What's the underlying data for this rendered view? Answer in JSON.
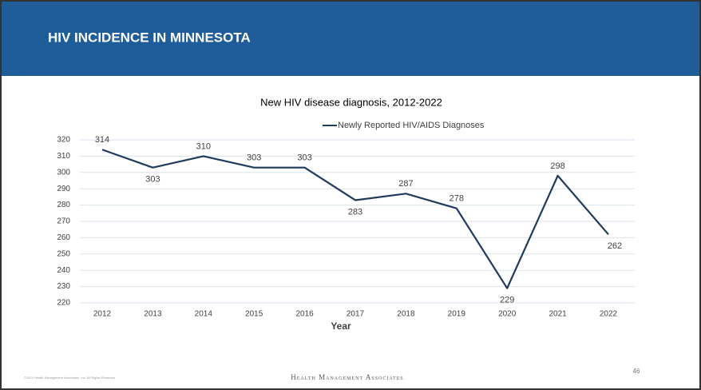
{
  "slide": {
    "title": "HIV INCIDENCE IN MINNESOTA",
    "copyright": "©2024 Health Management Associates, Inc. All Rights Reserved.",
    "brand": "Health Management Associates",
    "page_number": "46"
  },
  "chart_data": {
    "type": "line",
    "title": "New HIV disease diagnosis, 2012-2022",
    "x_label": "Year",
    "categories": [
      "2012",
      "2013",
      "2014",
      "2015",
      "2016",
      "2017",
      "2018",
      "2019",
      "2020",
      "2021",
      "2022"
    ],
    "series": [
      {
        "name": "Newly Reported HIV/AIDS Diagnoses",
        "color": "#1f3a5c",
        "values": [
          314,
          303,
          310,
          303,
          303,
          283,
          287,
          278,
          229,
          298,
          262
        ]
      }
    ],
    "ylim": [
      220,
      320
    ],
    "yticks": [
      220,
      230,
      240,
      250,
      260,
      270,
      280,
      290,
      300,
      310,
      320
    ],
    "grid": true,
    "legend": "top"
  }
}
